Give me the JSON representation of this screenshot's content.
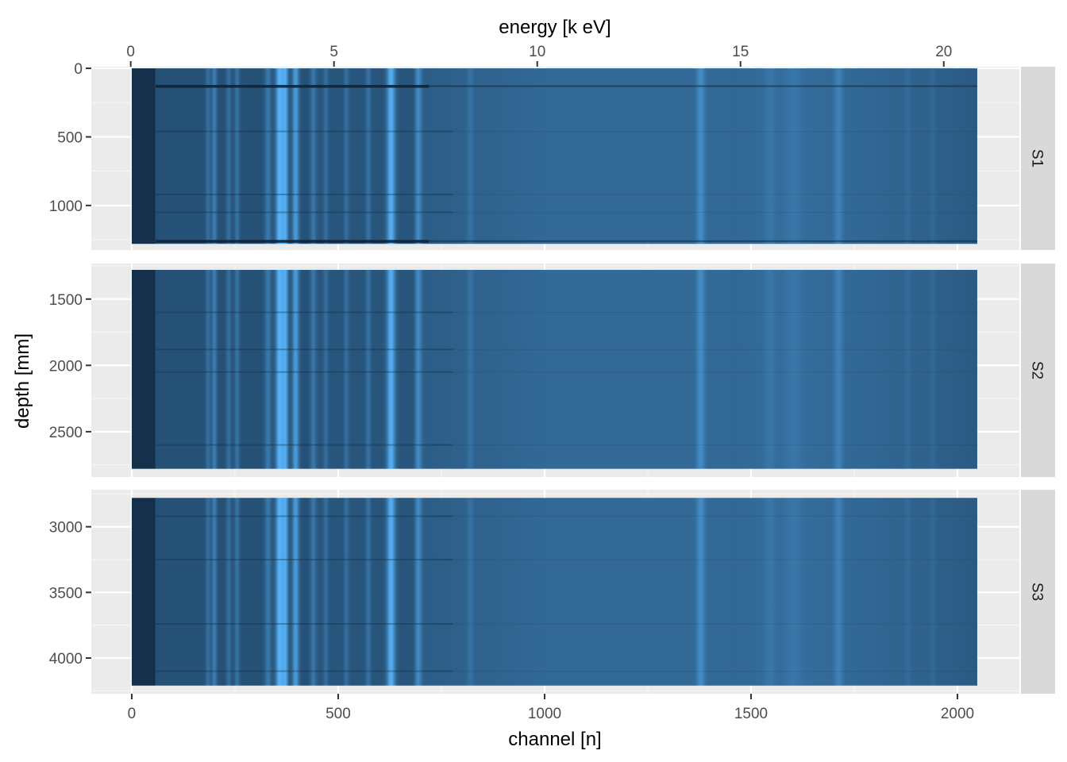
{
  "chart_data": {
    "type": "heatmap",
    "top_axis": {
      "label": "energy [k eV]",
      "ticks": [
        0,
        5,
        10,
        15,
        20
      ],
      "range": [
        -0.97,
        21.86
      ]
    },
    "bottom_axis": {
      "label": "channel [n]",
      "ticks": [
        0,
        500,
        1000,
        1500,
        2000
      ],
      "range": [
        -98,
        2150
      ],
      "data_range": [
        0,
        2048
      ]
    },
    "y_axis": {
      "label": "depth [mm]",
      "reversed": true
    },
    "panels": [
      {
        "strip": "S1",
        "depth_range": [
          0,
          1280
        ],
        "y_limits": [
          -12,
          1325
        ],
        "y_ticks": [
          0,
          500,
          1000
        ],
        "anomaly_depths": [
          130,
          1260
        ],
        "faint_rows": [
          460,
          920,
          1050
        ]
      },
      {
        "strip": "S2",
        "depth_range": [
          1280,
          2780
        ],
        "y_limits": [
          1232,
          2842
        ],
        "y_ticks": [
          1500,
          2000,
          2500
        ],
        "anomaly_depths": [],
        "faint_rows": [
          1600,
          1880,
          2050,
          2600
        ]
      },
      {
        "strip": "S3",
        "depth_range": [
          2780,
          4210
        ],
        "y_limits": [
          2718,
          4272
        ],
        "y_ticks": [
          3000,
          3500,
          4000
        ],
        "anomaly_depths": [],
        "faint_rows": [
          2920,
          3250,
          3740,
          4100
        ]
      }
    ],
    "spectrum_peaks": [
      {
        "channel": 185,
        "width": 6,
        "strength": 0.3
      },
      {
        "channel": 200,
        "width": 6,
        "strength": 0.45
      },
      {
        "channel": 235,
        "width": 6,
        "strength": 0.3
      },
      {
        "channel": 255,
        "width": 6,
        "strength": 0.35
      },
      {
        "channel": 330,
        "width": 8,
        "strength": 0.4
      },
      {
        "channel": 358,
        "width": 9,
        "strength": 1.0
      },
      {
        "channel": 372,
        "width": 7,
        "strength": 0.85
      },
      {
        "channel": 397,
        "width": 8,
        "strength": 0.75
      },
      {
        "channel": 440,
        "width": 7,
        "strength": 0.35
      },
      {
        "channel": 470,
        "width": 6,
        "strength": 0.25
      },
      {
        "channel": 520,
        "width": 6,
        "strength": 0.25
      },
      {
        "channel": 573,
        "width": 6,
        "strength": 0.3
      },
      {
        "channel": 628,
        "width": 10,
        "strength": 0.9
      },
      {
        "channel": 694,
        "width": 8,
        "strength": 0.55
      },
      {
        "channel": 820,
        "width": 8,
        "strength": 0.15
      },
      {
        "channel": 1378,
        "width": 10,
        "strength": 0.35
      },
      {
        "channel": 1545,
        "width": 12,
        "strength": 0.12
      },
      {
        "channel": 1603,
        "width": 20,
        "strength": 0.1
      },
      {
        "channel": 1712,
        "width": 10,
        "strength": 0.25
      },
      {
        "channel": 1880,
        "width": 8,
        "strength": 0.08
      },
      {
        "channel": 1940,
        "width": 8,
        "strength": 0.08
      }
    ],
    "colors": {
      "panel_background": "#ebebeb",
      "grid_major": "#ffffff",
      "strip_background": "#d9d9d9",
      "low": "#132b43",
      "high": "#56b1f7"
    }
  }
}
